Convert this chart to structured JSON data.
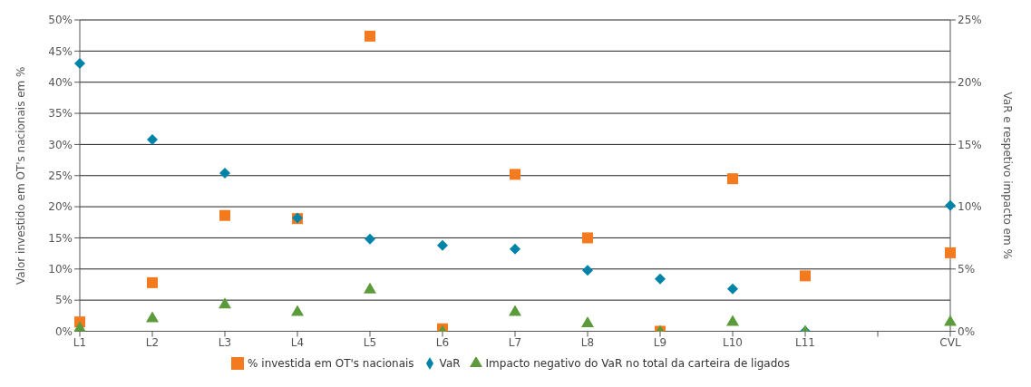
{
  "chart_data": {
    "type": "scatter",
    "ylabel": "Valor investido em OT's nacionais em %",
    "y2label": "VaR e respetivo impacto em %",
    "categories": [
      "L1",
      "L2",
      "L3",
      "L4",
      "L5",
      "L6",
      "L7",
      "L8",
      "L9",
      "L10",
      "L11",
      null,
      "CVL"
    ],
    "series": [
      {
        "name": "% investida em OT's nacionais",
        "color": "#f47a20",
        "marker": "square",
        "values": [
          1.5,
          7.8,
          18.6,
          18.1,
          47.4,
          0.4,
          25.2,
          15.0,
          0,
          24.5,
          8.9,
          null,
          12.6
        ]
      },
      {
        "name": "VaR",
        "color": "#0083a9",
        "marker": "diamond",
        "axis": "y2",
        "values": [
          21.5,
          15.4,
          12.7,
          9.1,
          7.4,
          6.9,
          6.6,
          4.9,
          4.2,
          3.4,
          0,
          null,
          10.1
        ]
      },
      {
        "name": "Impacto negativo do VaR no total da carteira de ligados",
        "color": "#5b9b3b",
        "marker": "triangle",
        "axis": "y2",
        "values": [
          0.3,
          1.1,
          2.2,
          1.6,
          3.4,
          0,
          1.6,
          0.7,
          0,
          0.8,
          0,
          null,
          0.8
        ]
      }
    ],
    "ylim": [
      0,
      50
    ],
    "yticks": [
      {
        "value": 0,
        "label": "0%"
      },
      {
        "value": 5,
        "label": "5%"
      },
      {
        "value": 10,
        "label": "10%"
      },
      {
        "value": 15,
        "label": "15%"
      },
      {
        "value": 20,
        "label": "20%"
      },
      {
        "value": 25,
        "label": "25%"
      },
      {
        "value": 30,
        "label": "30%"
      },
      {
        "value": 35,
        "label": "35%"
      },
      {
        "value": 40,
        "label": "40%"
      },
      {
        "value": 45,
        "label": "45%"
      },
      {
        "value": 50,
        "label": "50%"
      }
    ],
    "y2lim": [
      0,
      25
    ],
    "y2ticks": [
      {
        "value": 0,
        "label": "0%"
      },
      {
        "value": 5,
        "label": "5%"
      },
      {
        "value": 10,
        "label": "10%"
      },
      {
        "value": 15,
        "label": "15%"
      },
      {
        "value": 20,
        "label": "20%"
      },
      {
        "value": 25,
        "label": "25%"
      }
    ],
    "grid": "y",
    "legend": "bottom"
  }
}
